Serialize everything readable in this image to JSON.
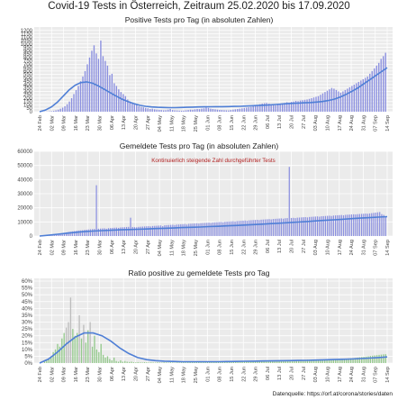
{
  "title": "Covid-19 Tests in Österreich, Zeitraum 25.02.2020 bis 17.09.2020",
  "source": "Datenquelle: https://orf.at/corona/stories/daten",
  "colors": {
    "panel_bg": "#ebebeb",
    "grid": "#ffffff",
    "bar_blue": "#8a8fe0",
    "bar_green": "#93c98b",
    "bar_grey": "#bdbdbd",
    "smooth": "#4f7fd6",
    "annotation": "#b22222"
  },
  "chart_data": [
    {
      "type": "bar",
      "title": "Positive Tests pro Tag (in absoluten Zahlen)",
      "x_date_start": "2020-02-24",
      "x_date_end": "2020-09-17",
      "x_ticks": [
        "24 Feb",
        "02 Mar",
        "09 Mar",
        "16 Mar",
        "23 Mar",
        "30 Mar",
        "06 Apr",
        "13 Apr",
        "20 Apr",
        "27 Apr",
        "04 May",
        "11 May",
        "18 May",
        "25 May",
        "01 Jun",
        "08 Jun",
        "15 Jun",
        "22 Jun",
        "29 Jun",
        "06 Jul",
        "13 Jul",
        "20 Jul",
        "27 Jul",
        "03 Aug",
        "10 Aug",
        "17 Aug",
        "24 Aug",
        "31 Aug",
        "07 Sep",
        "14 Sep"
      ],
      "y_ticks": [
        "0",
        "50",
        "100",
        "150",
        "200",
        "250",
        "300",
        "350",
        "400",
        "450",
        "500",
        "550",
        "600",
        "650",
        "700",
        "750",
        "800",
        "850",
        "900",
        "950",
        "1000",
        "1050",
        "1100",
        "1150",
        "1200"
      ],
      "ylim": [
        0,
        1250
      ],
      "bar_color": "bar_blue",
      "series": [
        {
          "values": [
            0,
            0,
            2,
            3,
            5,
            8,
            12,
            20,
            30,
            45,
            60,
            80,
            110,
            150,
            200,
            260,
            320,
            380,
            450,
            520,
            600,
            700,
            800,
            900,
            980,
            860,
            780,
            1050,
            820,
            750,
            680,
            540,
            560,
            420,
            380,
            330,
            290,
            260,
            230,
            180,
            150,
            130,
            110,
            100,
            80,
            70,
            65,
            55,
            50,
            40,
            45,
            35,
            30,
            28,
            25,
            20,
            22,
            30,
            40,
            25,
            20,
            18,
            15,
            14,
            16,
            20,
            25,
            30,
            28,
            35,
            40,
            38,
            45,
            50,
            60,
            55,
            45,
            40,
            35,
            30,
            28,
            25,
            22,
            20,
            18,
            25,
            30,
            35,
            40,
            45,
            50,
            55,
            60,
            65,
            70,
            80,
            90,
            100,
            110,
            120,
            125,
            130,
            120,
            110,
            100,
            95,
            105,
            115,
            125,
            130,
            140,
            135,
            145,
            150,
            160,
            155,
            165,
            170,
            175,
            180,
            190,
            200,
            210,
            220,
            230,
            250,
            270,
            290,
            310,
            330,
            350,
            340,
            320,
            300,
            280,
            300,
            320,
            340,
            360,
            380,
            400,
            420,
            440,
            460,
            480,
            500,
            520,
            560,
            600,
            640,
            680,
            720,
            780,
            820,
            870
          ]
        },
        {
          "name": "smooth",
          "values": [
            0,
            25,
            70,
            140,
            230,
            320,
            390,
            430,
            440,
            420,
            380,
            330,
            280,
            230,
            185,
            150,
            120,
            95,
            80,
            70,
            65,
            62,
            60,
            60,
            62,
            65,
            68,
            70,
            72,
            73,
            74,
            75,
            76,
            78,
            80,
            84,
            88,
            92,
            96,
            100,
            106,
            112,
            118,
            124,
            128,
            132,
            136,
            142,
            150,
            165,
            185,
            215,
            255,
            300,
            350,
            410,
            470,
            530,
            590,
            650
          ]
        }
      ]
    },
    {
      "type": "bar",
      "title": "Gemeldete Tests pro Tag (in absoluten Zahlen)",
      "annotation": "Kontinuierlich steigende Zahl durchgeführter Tests",
      "x_date_start": "2020-02-24",
      "x_date_end": "2020-09-17",
      "x_ticks": [
        "24 Feb",
        "02 Mar",
        "09 Mar",
        "16 Mar",
        "23 Mar",
        "30 Mar",
        "06 Apr",
        "13 Apr",
        "20 Apr",
        "27 Apr",
        "04 May",
        "11 May",
        "18 May",
        "25 May",
        "01 Jun",
        "08 Jun",
        "15 Jun",
        "22 Jun",
        "29 Jun",
        "06 Jul",
        "13 Jul",
        "20 Jul",
        "27 Jul",
        "03 Aug",
        "10 Aug",
        "17 Aug",
        "24 Aug",
        "31 Aug",
        "07 Sep",
        "14 Sep"
      ],
      "y_ticks": [
        "0",
        "10000",
        "20000",
        "30000",
        "40000",
        "50000",
        "60000"
      ],
      "ylim": [
        0,
        60000
      ],
      "bar_color": "bar_blue",
      "series": [
        {
          "values": [
            0,
            50,
            100,
            150,
            200,
            300,
            500,
            700,
            1000,
            1300,
            1600,
            2000,
            2300,
            2600,
            2900,
            3100,
            3300,
            3500,
            3700,
            3900,
            4000,
            4100,
            4300,
            4500,
            4700,
            4800,
            4900,
            5000,
            36000,
            5200,
            5300,
            5400,
            5500,
            5200,
            5600,
            5700,
            5800,
            5900,
            6000,
            5800,
            6100,
            6200,
            6300,
            6400,
            6500,
            13000,
            6400,
            6300,
            6200,
            6500,
            6600,
            6700,
            6800,
            6900,
            7000,
            6800,
            7100,
            7200,
            7300,
            7400,
            7500,
            7000,
            7600,
            7700,
            7800,
            7900,
            8000,
            7800,
            8100,
            8200,
            8300,
            8400,
            8500,
            8200,
            8600,
            8700,
            8800,
            8900,
            9000,
            8800,
            9100,
            9200,
            9300,
            9400,
            9500,
            9300,
            9600,
            9700,
            9800,
            9900,
            10000,
            9800,
            10100,
            10200,
            10300,
            10400,
            10500,
            10300,
            10600,
            10700,
            10800,
            10900,
            11000,
            10800,
            11100,
            11200,
            11300,
            11400,
            11500,
            11300,
            11600,
            11700,
            11800,
            11900,
            12000,
            11800,
            12100,
            12200,
            12300,
            12400,
            12500,
            12300,
            12600,
            12700,
            49000,
            12800,
            12900,
            12700,
            13000,
            13100,
            13200,
            13300,
            13400,
            13200,
            13500,
            13600,
            13700,
            13800,
            13900,
            13700,
            14000,
            14100,
            14200,
            14300,
            14400,
            14200,
            14500,
            14600,
            14700,
            14800,
            14900,
            14700,
            15000,
            15100,
            15200,
            15300,
            15400,
            15300,
            15500,
            15600,
            15700,
            15800,
            15900,
            15800,
            16000,
            16200,
            16400,
            16600,
            16800,
            17000,
            15500,
            15000,
            14000
          ]
        },
        {
          "name": "smooth",
          "values": [
            0,
            600,
            1300,
            2000,
            2600,
            3100,
            3500,
            3800,
            4100,
            4400,
            4600,
            4800,
            5000,
            5300,
            5500,
            5700,
            6000,
            6200,
            6400,
            6700,
            6900,
            7200,
            7500,
            7800,
            8100,
            8400,
            8800,
            9100,
            9500,
            9900,
            10300,
            10700,
            11100,
            11500,
            11900,
            12300,
            12700,
            13000,
            13400,
            13700
          ]
        }
      ]
    },
    {
      "type": "bar",
      "title": "Ratio positive zu gemeldete Tests pro Tag",
      "x_date_start": "2020-02-24",
      "x_date_end": "2020-09-17",
      "x_ticks": [
        "24 Feb",
        "02 Mar",
        "09 Mar",
        "16 Mar",
        "23 Mar",
        "30 Mar",
        "06 Apr",
        "13 Apr",
        "20 Apr",
        "27 Apr",
        "04 May",
        "11 May",
        "18 May",
        "25 May",
        "01 Jun",
        "08 Jun",
        "15 Jun",
        "22 Jun",
        "29 Jun",
        "06 Jul",
        "13 Jul",
        "20 Jul",
        "27 Jul",
        "03 Aug",
        "10 Aug",
        "17 Aug",
        "24 Aug",
        "31 Aug",
        "07 Sep",
        "14 Sep"
      ],
      "y_ticks": [
        "0%",
        "5%",
        "10%",
        "15%",
        "20%",
        "25%",
        "30%",
        "35%",
        "40%",
        "45%",
        "50%",
        "55%",
        "60%"
      ],
      "ylim": [
        0,
        62
      ],
      "bar_color": "bar_green",
      "series": [
        {
          "values": [
            0,
            0,
            1,
            2,
            3,
            5,
            8,
            10,
            14,
            12,
            18,
            22,
            26,
            30,
            48,
            25,
            20,
            22,
            35,
            18,
            28,
            15,
            24,
            30,
            12,
            20,
            10,
            8,
            14,
            6,
            4,
            5,
            3,
            2,
            4,
            1.5,
            1,
            2,
            1,
            1.5,
            1,
            0.8,
            1,
            0.6,
            0.5,
            0.7,
            0.5,
            0.4,
            0.6,
            0.5,
            0.4,
            0.5,
            0.4,
            0.3,
            0.5,
            0.4,
            0.3,
            0.5,
            0.4,
            0.3,
            0.5,
            0.4,
            0.3,
            0.5,
            0.4,
            0.5,
            0.6,
            0.5,
            0.6,
            0.7,
            0.6,
            0.7,
            0.8,
            0.7,
            0.8,
            0.9,
            0.8,
            0.9,
            1,
            0.9,
            1,
            1.1,
            1,
            1.1,
            1.2,
            1.1,
            1.2,
            1.3,
            1.2,
            1.3,
            1.4,
            1.3,
            1.4,
            1.5,
            1.4,
            1.5,
            1.6,
            1.5,
            1.6,
            1.7,
            1.6,
            1.7,
            1.8,
            1.7,
            1.8,
            1.9,
            1.8,
            1.9,
            2,
            1.9,
            2,
            2.1,
            2,
            2.1,
            2.2,
            2.1,
            2.2,
            2.3,
            2.2,
            2.3,
            2.4,
            2.3,
            2.4,
            2.5,
            2.4,
            2.5,
            2.6,
            2.5,
            2.6,
            2.7,
            2.6,
            2.7,
            2.8,
            2.7,
            2.8,
            2.9,
            2.8,
            2.9,
            3,
            3.1,
            3.2,
            3.3,
            3.4,
            3.5,
            3.6,
            3.8,
            4,
            4.2,
            4.4,
            4.6,
            4.8,
            5,
            5.2,
            5.4,
            5.6,
            5.8,
            6,
            6.2,
            6.4,
            6.5
          ]
        },
        {
          "name": "smooth",
          "values": [
            0,
            3,
            8,
            14,
            19,
            22,
            22,
            20,
            16,
            11,
            7,
            4,
            2.5,
            1.8,
            1.4,
            1.2,
            1,
            1,
            1,
            1,
            1,
            1.1,
            1.2,
            1.3,
            1.4,
            1.5,
            1.6,
            1.7,
            1.8,
            1.9,
            2,
            2.2,
            2.4,
            2.6,
            2.8,
            3,
            3.3,
            3.6,
            4,
            4.5
          ]
        }
      ]
    }
  ]
}
